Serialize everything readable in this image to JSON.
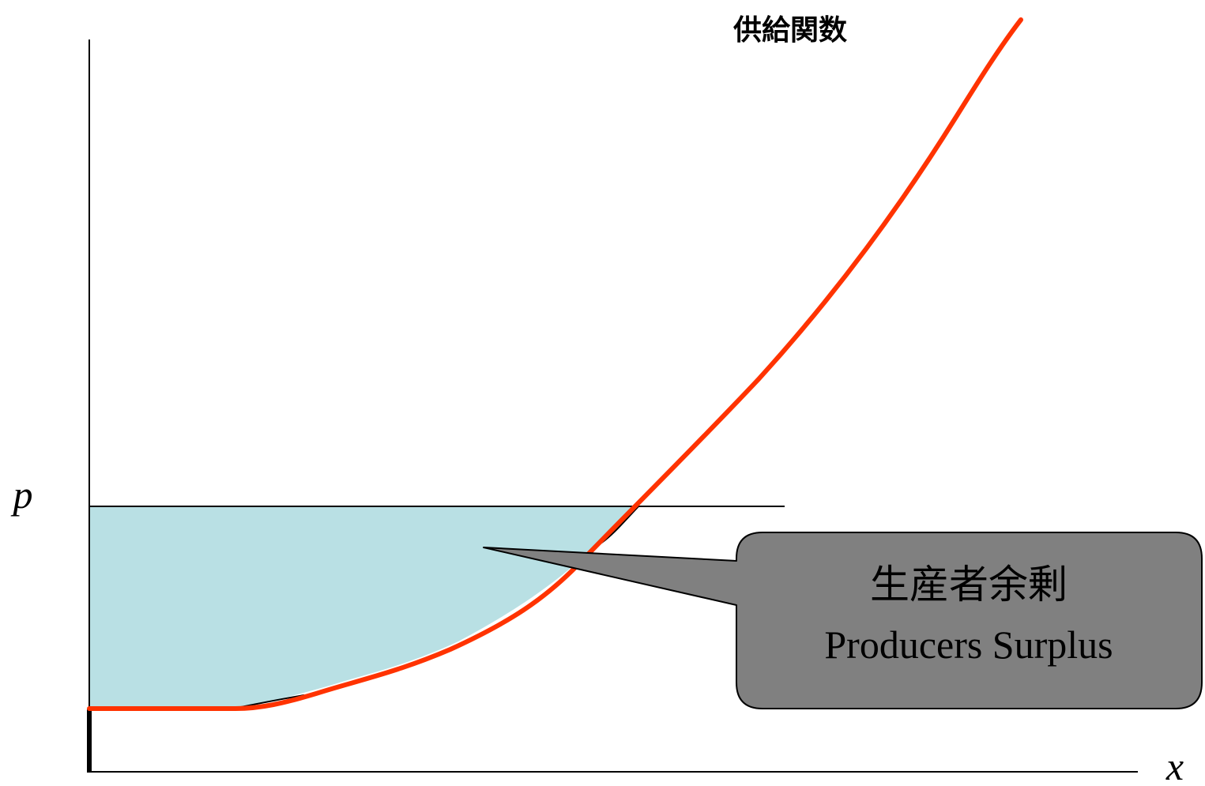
{
  "curve_label": "供給関数",
  "axes": {
    "y_label": "p",
    "x_label": "x"
  },
  "callout": {
    "line1": "生産者余剰",
    "line2": "Producers Surplus"
  },
  "colors": {
    "supply_curve": "#ff3300",
    "surplus_fill": "#b9e0e4",
    "callout_fill": "#808080",
    "axis": "#000000"
  }
}
